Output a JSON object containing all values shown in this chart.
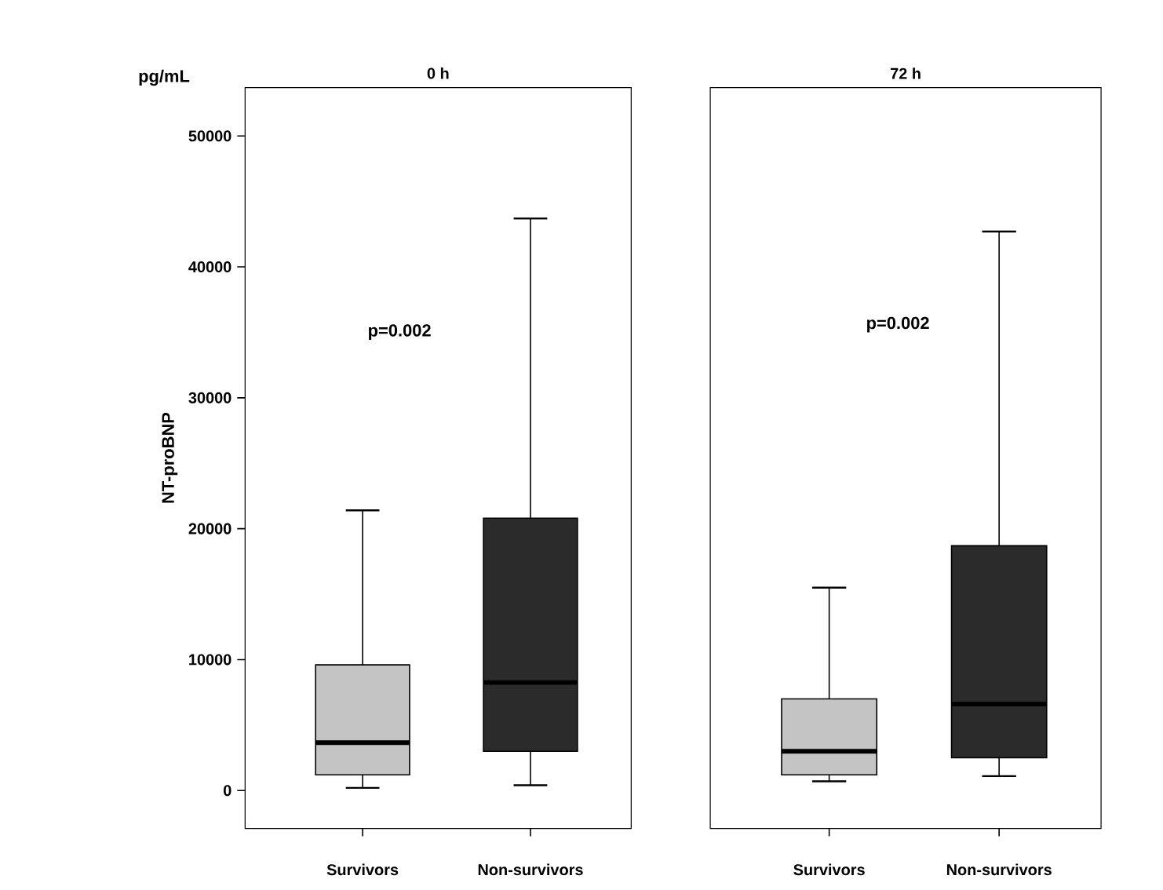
{
  "chart_data": [
    {
      "type": "box",
      "title": "0 h",
      "ylabel": "NT-proBNP",
      "categories": [
        "Survivors",
        "Non-survivors"
      ],
      "colors": [
        "#c4c4c4",
        "#2b2b2b"
      ],
      "boxes": [
        {
          "low": 200,
          "q1": 1200,
          "median": 3650,
          "q3": 9600,
          "high": 21400
        },
        {
          "low": 400,
          "q1": 3000,
          "median": 8250,
          "q3": 20800,
          "high": 43700
        }
      ],
      "ylim": [
        -2900,
        53700
      ],
      "yticks": [
        0,
        10000,
        20000,
        30000,
        40000,
        50000
      ],
      "annotations": [
        "p=0.002",
        "pg/mL"
      ]
    },
    {
      "type": "box",
      "title": "72 h",
      "categories": [
        "Survivors",
        "Non-survivors"
      ],
      "colors": [
        "#c4c4c4",
        "#2b2b2b"
      ],
      "boxes": [
        {
          "low": 700,
          "q1": 1200,
          "median": 3000,
          "q3": 7000,
          "high": 15500
        },
        {
          "low": 1100,
          "q1": 2500,
          "median": 6600,
          "q3": 18700,
          "high": 42700
        }
      ],
      "ylim": [
        -2900,
        53700
      ],
      "tick_labels": "x",
      "annotations": [
        "p=0.002"
      ]
    }
  ]
}
